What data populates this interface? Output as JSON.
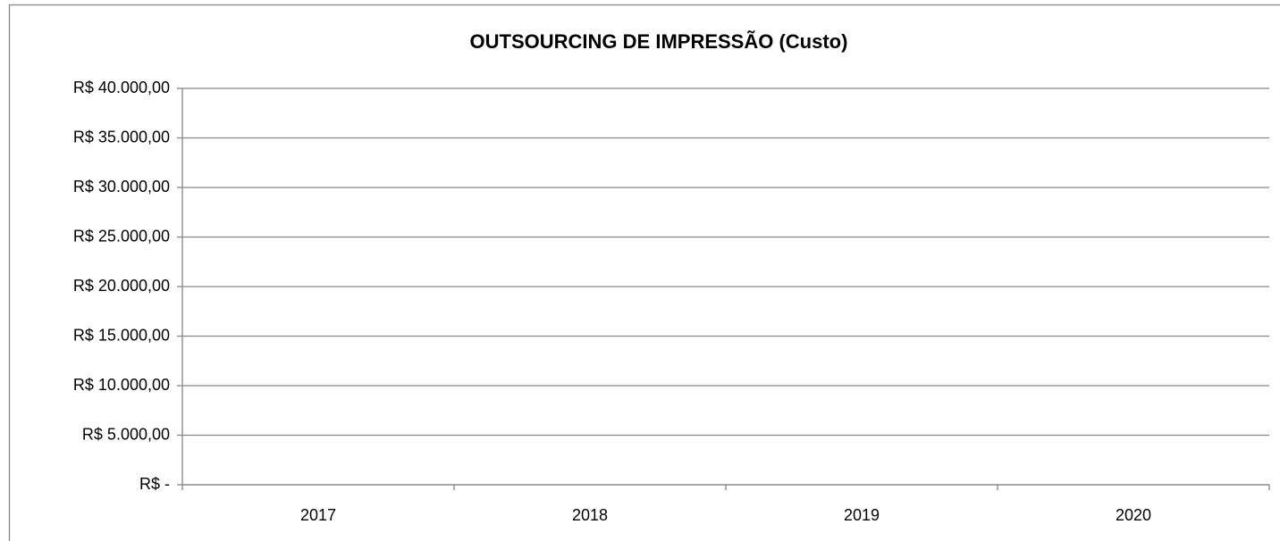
{
  "chart_data": {
    "type": "bar",
    "title": "OUTSOURCING DE IMPRESSÃO (Custo)",
    "categories": [
      "2017",
      "2018",
      "2019",
      "2020"
    ],
    "ylim": [
      0,
      40000
    ],
    "yticks": [
      {
        "value": 0,
        "label": "R$ -"
      },
      {
        "value": 5000,
        "label": "R$ 5.000,00"
      },
      {
        "value": 10000,
        "label": "R$ 10.000,00"
      },
      {
        "value": 15000,
        "label": "R$ 15.000,00"
      },
      {
        "value": 20000,
        "label": "R$ 20.000,00"
      },
      {
        "value": 25000,
        "label": "R$ 25.000,00"
      },
      {
        "value": 30000,
        "label": "R$ 30.000,00"
      },
      {
        "value": 35000,
        "label": "R$ 35.000,00"
      },
      {
        "value": 40000,
        "label": "R$ 40.000,00"
      }
    ],
    "grid": true
  }
}
